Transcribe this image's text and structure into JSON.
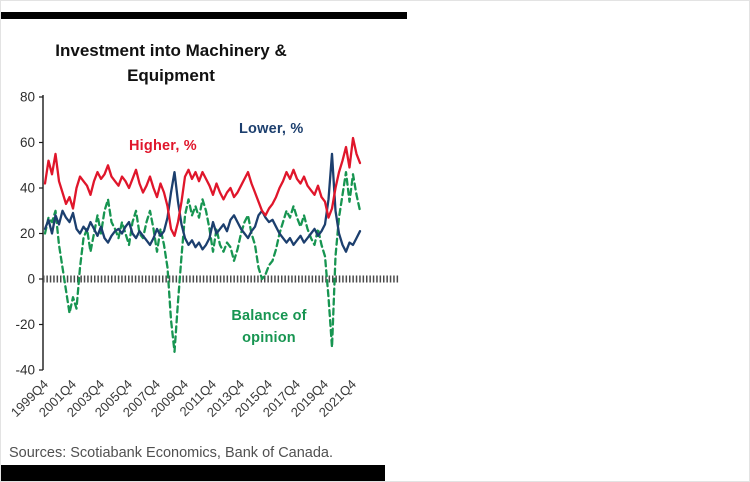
{
  "chart_data": {
    "type": "line",
    "title": "Investment into Machinery & Equipment",
    "x_start": "1999Q4",
    "x_frequency": "quarterly",
    "x_tick_labels": [
      "1999Q4",
      "2001Q4",
      "2003Q4",
      "2005Q4",
      "2007Q4",
      "2009Q4",
      "2011Q4",
      "2013Q4",
      "2015Q4",
      "2017Q4",
      "2019Q4",
      "2021Q4"
    ],
    "x_tick_step_quarters": 8,
    "ylim": [
      -40,
      80
    ],
    "yticks": [
      80,
      60,
      40,
      20,
      0,
      -20,
      -40
    ],
    "grid": false,
    "legend_position": "inline-annotations",
    "zero_line_style": "thick-hatched-gray",
    "series": [
      {
        "name": "Higher, %",
        "color": "#e0162b",
        "style": "solid",
        "values": [
          42,
          52,
          46,
          55,
          43,
          38,
          33,
          36,
          31,
          40,
          45,
          43,
          41,
          37,
          43,
          47,
          44,
          46,
          50,
          45,
          43,
          41,
          45,
          43,
          40,
          44,
          48,
          42,
          38,
          41,
          45,
          40,
          36,
          42,
          38,
          32,
          22,
          19,
          25,
          34,
          45,
          48,
          44,
          47,
          43,
          47,
          44,
          41,
          37,
          42,
          38,
          35,
          38,
          40,
          36,
          38,
          41,
          44,
          47,
          42,
          38,
          34,
          30,
          28,
          31,
          33,
          36,
          40,
          43,
          47,
          44,
          48,
          44,
          42,
          45,
          41,
          39,
          37,
          41,
          36,
          34,
          27,
          31,
          40,
          47,
          52,
          58,
          49,
          62,
          55,
          51
        ]
      },
      {
        "name": "Lower, %",
        "color": "#1c3f6e",
        "style": "solid",
        "values": [
          22,
          26,
          20,
          28,
          24,
          30,
          27,
          25,
          29,
          22,
          20,
          23,
          21,
          25,
          22,
          19,
          23,
          18,
          16,
          19,
          21,
          22,
          20,
          23,
          25,
          20,
          18,
          21,
          19,
          17,
          15,
          18,
          22,
          19,
          21,
          27,
          38,
          47,
          34,
          24,
          18,
          15,
          17,
          14,
          16,
          13,
          15,
          18,
          25,
          20,
          22,
          24,
          21,
          26,
          28,
          25,
          22,
          20,
          18,
          21,
          23,
          28,
          30,
          27,
          25,
          26,
          23,
          20,
          18,
          16,
          18,
          15,
          17,
          19,
          16,
          18,
          20,
          22,
          19,
          21,
          24,
          35,
          55,
          30,
          20,
          15,
          12,
          16,
          15,
          18,
          21
        ]
      },
      {
        "name": "Balance of opinion",
        "color": "#179551",
        "style": "dashed",
        "values": [
          20,
          27,
          25,
          30,
          15,
          5,
          -5,
          -15,
          -8,
          -13,
          5,
          18,
          22,
          12,
          20,
          28,
          20,
          30,
          35,
          25,
          22,
          18,
          25,
          20,
          15,
          25,
          30,
          20,
          18,
          25,
          30,
          22,
          12,
          22,
          15,
          5,
          -18,
          -32,
          -10,
          10,
          28,
          35,
          28,
          32,
          27,
          35,
          30,
          22,
          12,
          22,
          15,
          12,
          16,
          14,
          8,
          13,
          20,
          25,
          28,
          20,
          15,
          5,
          0,
          2,
          6,
          8,
          13,
          20,
          25,
          30,
          27,
          32,
          27,
          23,
          28,
          22,
          18,
          15,
          22,
          15,
          10,
          -8,
          -30,
          10,
          27,
          37,
          47,
          34,
          46,
          37,
          30
        ]
      }
    ],
    "annotations": [
      {
        "text": "Higher, %",
        "color": "#e0162b"
      },
      {
        "text": "Lower, %",
        "color": "#1c3f6e"
      },
      {
        "text": "Balance of opinion",
        "color": "#179551"
      }
    ]
  },
  "source": {
    "text": "Sources: Scotiabank Economics, Bank of Canada."
  },
  "colors": {
    "rule_bars": "#000000",
    "axis": "#1a1a1a",
    "zero_band": "#4a4a4a"
  }
}
